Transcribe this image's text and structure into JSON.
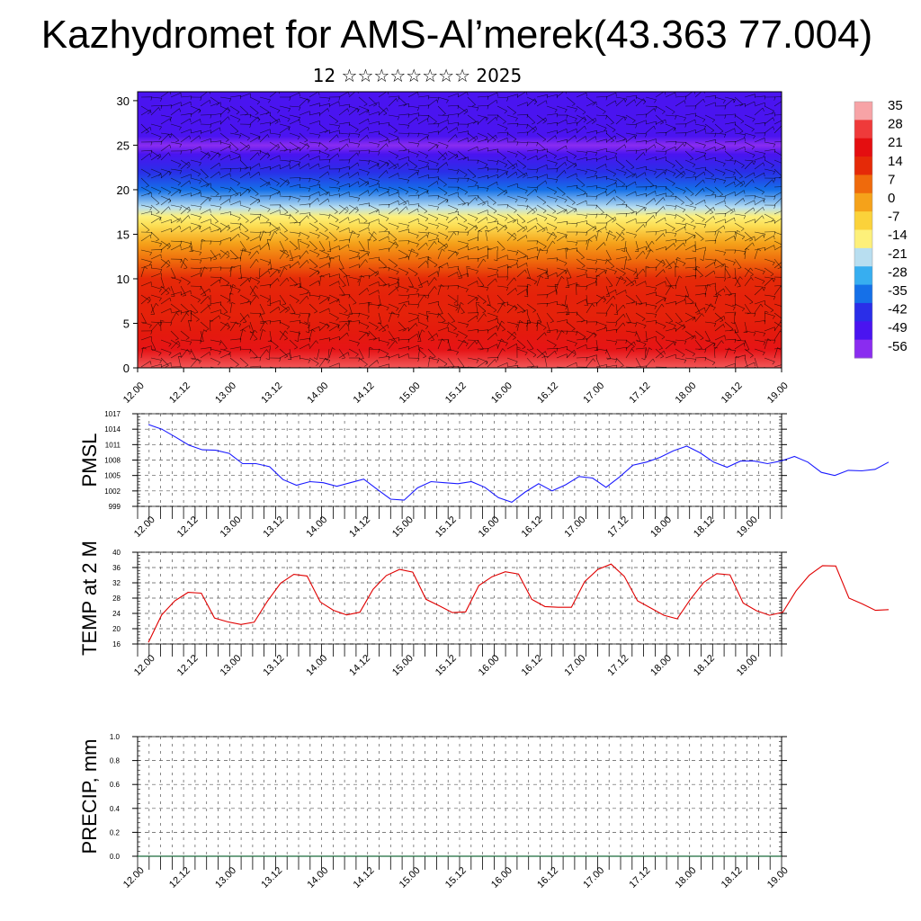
{
  "header": {
    "title": "Kazhydromet for AMS-Al’merek(43.363 77.004)",
    "subtitle": "12 ☆☆☆☆☆☆☆☆ 2025"
  },
  "time_ticks": [
    "12.00",
    "12.12",
    "13.00",
    "13.12",
    "14.00",
    "14.12",
    "15.00",
    "15.12",
    "16.00",
    "16.12",
    "17.00",
    "17.12",
    "18.00",
    "18.12",
    "19.00"
  ],
  "colorbar": {
    "labels": [
      "35",
      "28",
      "21",
      "14",
      "7",
      "0",
      "-7",
      "-14",
      "-21",
      "-28",
      "-35",
      "-42",
      "-49",
      "-56"
    ],
    "colors": [
      "#f7a3a6",
      "#ef3a3a",
      "#e40e10",
      "#e52a08",
      "#ef6a0c",
      "#f5a21a",
      "#fbd23a",
      "#fdf07a",
      "#b8def0",
      "#37aef0",
      "#1570e8",
      "#2a2ee8",
      "#4a14f0",
      "#8a2cf0"
    ]
  },
  "chart_data": [
    {
      "type": "heatmap",
      "title": "",
      "xlabel": "",
      "ylabel": "",
      "x_categories": [
        "12.00",
        "12.12",
        "13.00",
        "13.12",
        "14.00",
        "14.12",
        "15.00",
        "15.12",
        "16.00",
        "16.12",
        "17.00",
        "17.12",
        "18.00",
        "18.12",
        "19.00"
      ],
      "ylim": [
        0,
        31
      ],
      "y_ticks": [
        "0",
        "5",
        "10",
        "15",
        "20",
        "25",
        "30"
      ],
      "color_scale": [
        -56,
        35
      ],
      "profile_height": [
        0,
        2,
        4,
        6,
        8,
        10,
        12,
        14,
        16,
        17,
        18,
        20,
        22,
        24,
        25,
        26,
        28,
        31
      ],
      "profile_temp": [
        30,
        22,
        18,
        16,
        16,
        14,
        7,
        0,
        -10,
        -14,
        -21,
        -35,
        -42,
        -49,
        -56,
        -49,
        -49,
        -49
      ],
      "afternoon_peaks_at_surface": [
        35,
        35,
        35,
        35,
        35,
        35
      ]
    },
    {
      "type": "line",
      "ylabel": "PMSL",
      "ylim": [
        999,
        1017
      ],
      "y_ticks": [
        "999",
        "1002",
        "1005",
        "1008",
        "1011",
        "1014",
        "1017"
      ],
      "x_ticks": [
        "12.00",
        "12.12",
        "13.00",
        "13.12",
        "14.00",
        "14.12",
        "15.00",
        "15.12",
        "16.00",
        "16.12",
        "17.00",
        "17.12",
        "18.00",
        "18.12",
        "19.00"
      ],
      "series": [
        {
          "color": "#1a1aff",
          "values": [
            1014.9,
            1014,
            1012.5,
            1010.9,
            1010,
            1009.9,
            1009.3,
            1007.3,
            1007.3,
            1006.7,
            1004.2,
            1003.1,
            1003.8,
            1003.6,
            1002.9,
            1003.6,
            1004.3,
            1002.3,
            1000.4,
            1000.2,
            1002.6,
            1003.8,
            1003.6,
            1003.4,
            1003.8,
            1002.7,
            1000.7,
            999.8,
            1001.8,
            1003.4,
            1002,
            1003.2,
            1004.8,
            1004.5,
            1002.7,
            1004.7,
            1007,
            1007.6,
            1008.5,
            1009.8,
            1010.7,
            1009.4,
            1007.6,
            1006.6,
            1007.8,
            1007.8,
            1007.3,
            1007.8,
            1008.7,
            1007.6,
            1005.6,
            1005,
            1006,
            1005.9,
            1006.2,
            1007.6
          ]
        }
      ]
    },
    {
      "type": "line",
      "ylabel": "TEMP at 2 M",
      "ylim": [
        16,
        40
      ],
      "y_ticks": [
        "16",
        "20",
        "24",
        "28",
        "32",
        "36",
        "40"
      ],
      "x_ticks": [
        "12.00",
        "12.12",
        "13.00",
        "13.12",
        "14.00",
        "14.12",
        "15.00",
        "15.12",
        "16.00",
        "16.12",
        "17.00",
        "17.12",
        "18.00",
        "18.12",
        "19.00"
      ],
      "series": [
        {
          "color": "#e00000",
          "values": [
            16.4,
            23.6,
            27.3,
            29.5,
            29.3,
            22.8,
            21.8,
            21.1,
            21.7,
            27.2,
            31.9,
            34.2,
            33.8,
            27,
            24.8,
            23.6,
            24.3,
            30.3,
            33.9,
            35.5,
            34.8,
            27.7,
            26,
            24.2,
            24.4,
            31.3,
            33.6,
            34.9,
            34.3,
            27.7,
            25.8,
            25.6,
            25.6,
            32.3,
            35.5,
            36.9,
            33.7,
            27.3,
            25.4,
            23.5,
            22.6,
            27.7,
            32.1,
            34.4,
            34.1,
            26.7,
            24.7,
            23.5,
            24.3,
            29.9,
            34,
            36.5,
            36.4,
            28,
            26.5,
            24.8,
            25
          ]
        }
      ]
    },
    {
      "type": "line",
      "ylabel": "PRECIP, mm",
      "ylim": [
        0,
        1
      ],
      "y_ticks": [
        "0.0",
        "0.2",
        "0.4",
        "0.6",
        "0.8",
        "1.0"
      ],
      "x_ticks": [
        "12.00",
        "12.12",
        "13.00",
        "13.12",
        "14.00",
        "14.12",
        "15.00",
        "15.12",
        "16.00",
        "16.12",
        "17.00",
        "17.12",
        "18.00",
        "18.12",
        "19.00"
      ],
      "series": [
        {
          "color": "#000000",
          "values": [
            0,
            0,
            0,
            0,
            0,
            0,
            0,
            0,
            0,
            0,
            0,
            0,
            0,
            0,
            0,
            0,
            0,
            0,
            0,
            0,
            0,
            0,
            0,
            0,
            0,
            0,
            0,
            0,
            0,
            0,
            0,
            0,
            0,
            0,
            0,
            0,
            0,
            0,
            0,
            0,
            0,
            0,
            0,
            0,
            0,
            0,
            0,
            0,
            0,
            0,
            0,
            0,
            0,
            0,
            0,
            0,
            0
          ]
        }
      ]
    }
  ]
}
